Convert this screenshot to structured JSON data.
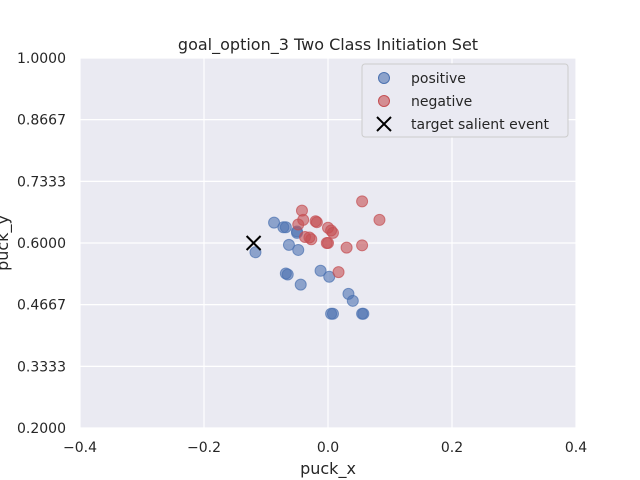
{
  "chart_data": {
    "type": "scatter",
    "title": "goal_option_3 Two Class Initiation Set",
    "xlabel": "puck_x",
    "ylabel": "puck_y",
    "xlim": [
      -0.4,
      0.4
    ],
    "ylim": [
      0.2,
      1.0
    ],
    "x_ticks": [
      "−0.4",
      "−0.2",
      "0.0",
      "0.2",
      "0.4"
    ],
    "x_tick_values": [
      -0.4,
      -0.2,
      0.0,
      0.2,
      0.4
    ],
    "y_ticks": [
      "0.2000",
      "0.3333",
      "0.4667",
      "0.6000",
      "0.7333",
      "0.8667",
      "1.0000"
    ],
    "y_tick_values": [
      0.2,
      0.3333,
      0.4667,
      0.6,
      0.7333,
      0.8667,
      1.0
    ],
    "grid": true,
    "legend_position": "top-right",
    "series": [
      {
        "name": "positive",
        "color": "#4c72b0",
        "marker": "circle",
        "points": [
          [
            -0.087,
            0.644
          ],
          [
            -0.072,
            0.634
          ],
          [
            -0.068,
            0.634
          ],
          [
            -0.05,
            0.625
          ],
          [
            -0.05,
            0.622
          ],
          [
            -0.063,
            0.596
          ],
          [
            -0.048,
            0.585
          ],
          [
            -0.117,
            0.58
          ],
          [
            -0.068,
            0.534
          ],
          [
            -0.065,
            0.532
          ],
          [
            -0.044,
            0.51
          ],
          [
            -0.012,
            0.54
          ],
          [
            0.002,
            0.527
          ],
          [
            0.033,
            0.49
          ],
          [
            0.04,
            0.475
          ],
          [
            0.005,
            0.447
          ],
          [
            0.008,
            0.447
          ],
          [
            0.055,
            0.447
          ],
          [
            0.057,
            0.447
          ]
        ]
      },
      {
        "name": "negative",
        "color": "#c44e52",
        "marker": "circle",
        "points": [
          [
            -0.042,
            0.67
          ],
          [
            -0.048,
            0.64
          ],
          [
            -0.04,
            0.65
          ],
          [
            -0.02,
            0.647
          ],
          [
            -0.018,
            0.645
          ],
          [
            0.0,
            0.633
          ],
          [
            0.005,
            0.627
          ],
          [
            0.008,
            0.622
          ],
          [
            -0.037,
            0.613
          ],
          [
            -0.03,
            0.612
          ],
          [
            -0.027,
            0.608
          ],
          [
            -0.002,
            0.6
          ],
          [
            0.0,
            0.6
          ],
          [
            0.03,
            0.59
          ],
          [
            0.055,
            0.595
          ],
          [
            0.055,
            0.69
          ],
          [
            0.083,
            0.65
          ],
          [
            0.017,
            0.537
          ]
        ]
      },
      {
        "name": "target salient event",
        "color": "#000000",
        "marker": "x",
        "points": [
          [
            -0.12,
            0.6
          ]
        ]
      }
    ]
  }
}
